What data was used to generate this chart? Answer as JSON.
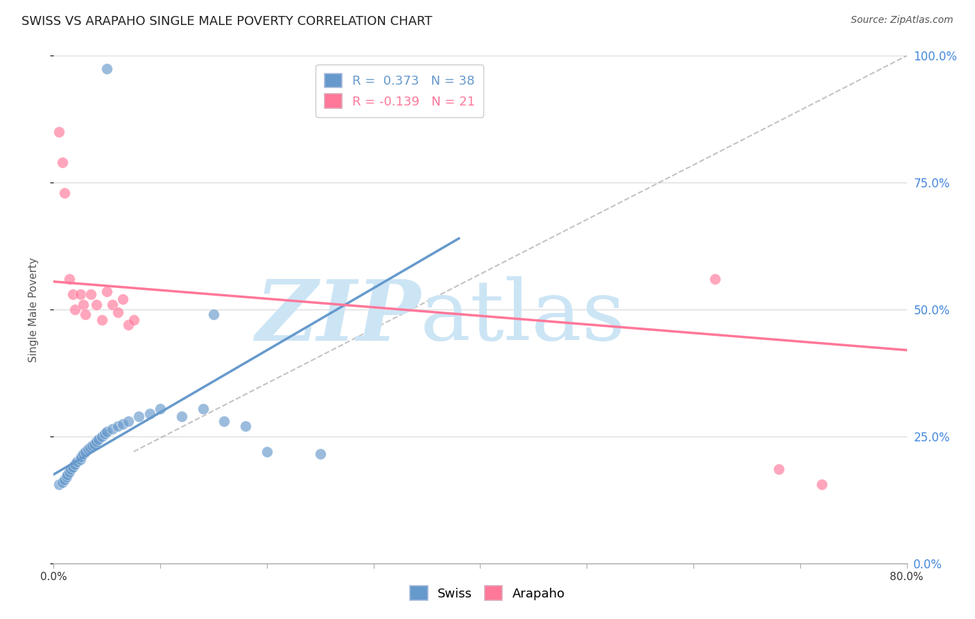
{
  "title": "SWISS VS ARAPAHO SINGLE MALE POVERTY CORRELATION CHART",
  "source": "Source: ZipAtlas.com",
  "ylabel": "Single Male Poverty",
  "xlim": [
    0.0,
    0.8
  ],
  "ylim": [
    0.0,
    1.0
  ],
  "swiss_color": "#6699cc",
  "arapaho_color": "#ff7799",
  "swiss_R": 0.373,
  "swiss_N": 38,
  "arapaho_R": -0.139,
  "arapaho_N": 21,
  "swiss_scatter_x": [
    0.005,
    0.008,
    0.01,
    0.012,
    0.013,
    0.015,
    0.016,
    0.018,
    0.02,
    0.022,
    0.025,
    0.026,
    0.028,
    0.03,
    0.032,
    0.034,
    0.036,
    0.038,
    0.04,
    0.042,
    0.045,
    0.048,
    0.05,
    0.055,
    0.06,
    0.065,
    0.07,
    0.08,
    0.09,
    0.1,
    0.12,
    0.14,
    0.16,
    0.18,
    0.2,
    0.25,
    0.15,
    0.05
  ],
  "swiss_scatter_y": [
    0.155,
    0.16,
    0.165,
    0.17,
    0.175,
    0.18,
    0.185,
    0.19,
    0.195,
    0.2,
    0.205,
    0.21,
    0.215,
    0.22,
    0.225,
    0.228,
    0.232,
    0.235,
    0.24,
    0.245,
    0.25,
    0.255,
    0.26,
    0.265,
    0.27,
    0.275,
    0.28,
    0.29,
    0.295,
    0.305,
    0.29,
    0.305,
    0.28,
    0.27,
    0.22,
    0.215,
    0.49,
    0.975
  ],
  "arapaho_scatter_x": [
    0.005,
    0.008,
    0.01,
    0.015,
    0.018,
    0.02,
    0.025,
    0.028,
    0.03,
    0.035,
    0.04,
    0.045,
    0.05,
    0.055,
    0.06,
    0.065,
    0.07,
    0.075,
    0.62,
    0.68,
    0.72
  ],
  "arapaho_scatter_y": [
    0.85,
    0.79,
    0.73,
    0.56,
    0.53,
    0.5,
    0.53,
    0.51,
    0.49,
    0.53,
    0.51,
    0.48,
    0.535,
    0.51,
    0.495,
    0.52,
    0.47,
    0.48,
    0.56,
    0.185,
    0.155
  ],
  "swiss_line_x": [
    0.0,
    0.38
  ],
  "swiss_line_y": [
    0.175,
    0.64
  ],
  "arapaho_line_x": [
    0.0,
    0.8
  ],
  "arapaho_line_y": [
    0.555,
    0.42
  ],
  "diag_line_x": [
    0.075,
    0.8
  ],
  "diag_line_y": [
    0.22,
    1.0
  ],
  "background_color": "#ffffff",
  "grid_color": "#dddddd",
  "watermark_color": "#cce5f5",
  "title_fontsize": 13,
  "source_fontsize": 10,
  "axis_label_fontsize": 10,
  "tick_fontsize": 11,
  "legend_fontsize": 13,
  "right_tick_color": "#4488dd"
}
